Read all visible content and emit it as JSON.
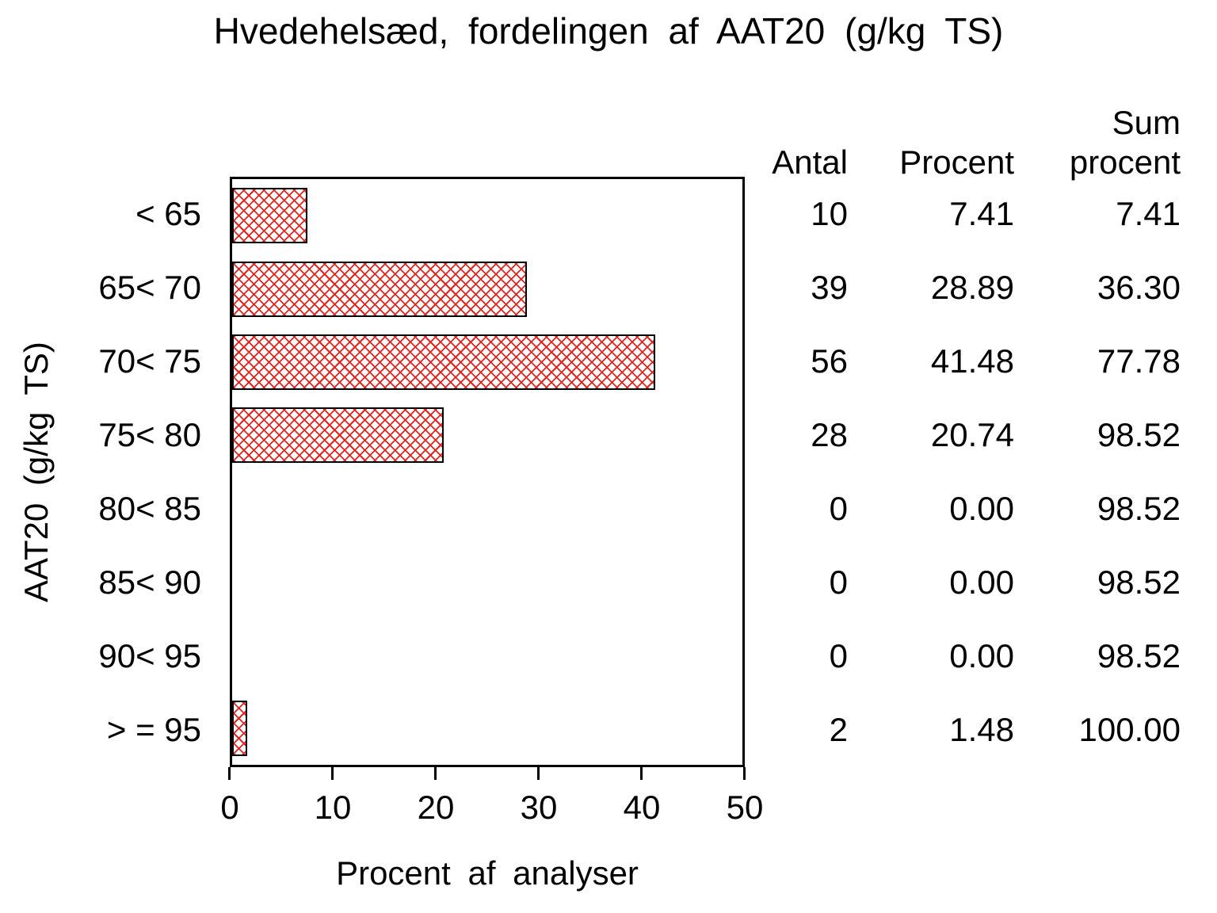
{
  "title": "Hvedehelsæd, fordelingen af AAT20 (g/kg TS)",
  "x_axis": {
    "title": "Procent af analyser",
    "ticks": [
      "0",
      "10",
      "20",
      "30",
      "40",
      "50"
    ]
  },
  "y_axis": {
    "title": "AAT20 (g/kg TS)"
  },
  "table": {
    "headers": {
      "sum_top": "Sum",
      "antal": "Antal",
      "procent": "Procent",
      "sum_bottom": "procent"
    },
    "rows": [
      {
        "antal": "10",
        "procent": "7.41",
        "sum": "7.41"
      },
      {
        "antal": "39",
        "procent": "28.89",
        "sum": "36.30"
      },
      {
        "antal": "56",
        "procent": "41.48",
        "sum": "77.78"
      },
      {
        "antal": "28",
        "procent": "20.74",
        "sum": "98.52"
      },
      {
        "antal": "0",
        "procent": "0.00",
        "sum": "98.52"
      },
      {
        "antal": "0",
        "procent": "0.00",
        "sum": "98.52"
      },
      {
        "antal": "0",
        "procent": "0.00",
        "sum": "98.52"
      },
      {
        "antal": "2",
        "procent": "1.48",
        "sum": "100.00"
      }
    ]
  },
  "chart_data": {
    "type": "bar",
    "orientation": "horizontal",
    "title": "Hvedehelsæd, fordelingen af AAT20 (g/kg TS)",
    "categories": [
      "< 65",
      "65< 70",
      "70< 75",
      "75< 80",
      "80< 85",
      "85< 90",
      "90< 95",
      "> = 95"
    ],
    "values": [
      7.41,
      28.89,
      41.48,
      20.74,
      0.0,
      0.0,
      0.0,
      1.48
    ],
    "counts": [
      10,
      39,
      56,
      28,
      0,
      0,
      0,
      2
    ],
    "cum_percent": [
      7.41,
      36.3,
      77.78,
      98.52,
      98.52,
      98.52,
      98.52,
      100.0
    ],
    "xlabel": "Procent af analyser",
    "ylabel": "AAT20 (g/kg TS)",
    "xlim": [
      0,
      50
    ],
    "xticks": [
      0,
      10,
      20,
      30,
      40,
      50
    ],
    "legend": "none",
    "grid": false,
    "bar_fill": "diagonal-crosshatch",
    "bar_color": "#e3231e",
    "bar_border_color": "#000000",
    "background": "#ffffff"
  }
}
